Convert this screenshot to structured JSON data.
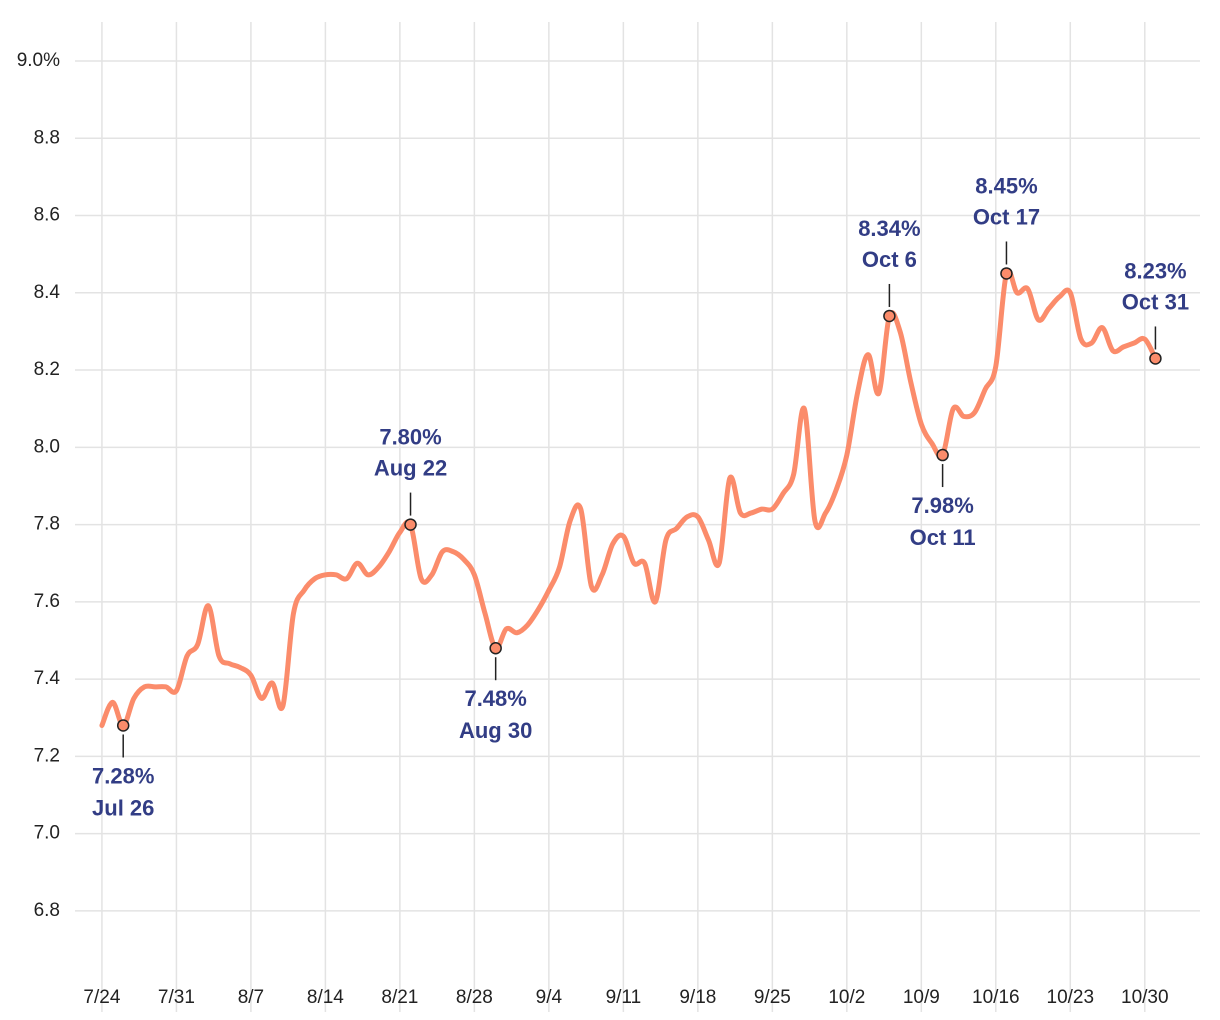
{
  "chart_data": {
    "type": "line",
    "color": "#fb8c6b",
    "annotation_color": "#323d85",
    "grid": true,
    "x": [
      "7/24",
      "7/25",
      "7/26",
      "7/27",
      "7/28",
      "7/29",
      "7/30",
      "7/31",
      "8/1",
      "8/2",
      "8/3",
      "8/4",
      "8/5",
      "8/6",
      "8/7",
      "8/8",
      "8/9",
      "8/10",
      "8/11",
      "8/12",
      "8/13",
      "8/14",
      "8/15",
      "8/16",
      "8/17",
      "8/18",
      "8/19",
      "8/20",
      "8/21",
      "8/22",
      "8/23",
      "8/24",
      "8/25",
      "8/26",
      "8/27",
      "8/28",
      "8/29",
      "8/30",
      "8/31",
      "9/1",
      "9/2",
      "9/3",
      "9/4",
      "9/5",
      "9/6",
      "9/7",
      "9/8",
      "9/9",
      "9/10",
      "9/11",
      "9/12",
      "9/13",
      "9/14",
      "9/15",
      "9/16",
      "9/17",
      "9/18",
      "9/19",
      "9/20",
      "9/21",
      "9/22",
      "9/23",
      "9/24",
      "9/25",
      "9/26",
      "9/27",
      "9/28",
      "9/29",
      "9/30",
      "10/1",
      "10/2",
      "10/3",
      "10/4",
      "10/5",
      "10/6",
      "10/7",
      "10/8",
      "10/9",
      "10/10",
      "10/11",
      "10/12",
      "10/13",
      "10/14",
      "10/15",
      "10/16",
      "10/17",
      "10/18",
      "10/19",
      "10/20",
      "10/21",
      "10/22",
      "10/23",
      "10/24",
      "10/25",
      "10/26",
      "10/27",
      "10/28",
      "10/29",
      "10/30",
      "10/31"
    ],
    "values": [
      7.28,
      7.34,
      7.28,
      7.35,
      7.38,
      7.38,
      7.38,
      7.37,
      7.46,
      7.49,
      7.59,
      7.46,
      7.44,
      7.43,
      7.41,
      7.35,
      7.39,
      7.33,
      7.57,
      7.63,
      7.66,
      7.67,
      7.67,
      7.66,
      7.7,
      7.67,
      7.69,
      7.73,
      7.78,
      7.8,
      7.66,
      7.67,
      7.73,
      7.73,
      7.71,
      7.67,
      7.57,
      7.48,
      7.53,
      7.52,
      7.54,
      7.58,
      7.63,
      7.69,
      7.81,
      7.84,
      7.64,
      7.67,
      7.75,
      7.77,
      7.7,
      7.7,
      7.6,
      7.76,
      7.79,
      7.82,
      7.82,
      7.76,
      7.7,
      7.92,
      7.83,
      7.83,
      7.84,
      7.84,
      7.88,
      7.93,
      8.1,
      7.81,
      7.83,
      7.89,
      7.98,
      8.14,
      8.24,
      8.14,
      8.34,
      8.3,
      8.17,
      8.06,
      8.01,
      7.98,
      8.1,
      8.08,
      8.09,
      8.15,
      8.21,
      8.45,
      8.4,
      8.41,
      8.33,
      8.36,
      8.39,
      8.4,
      8.28,
      8.27,
      8.31,
      8.25,
      8.26,
      8.27,
      8.28,
      8.23
    ],
    "xlim": [
      "7/21",
      "11/4"
    ],
    "xticks": [
      "7/24",
      "7/31",
      "8/7",
      "8/14",
      "8/21",
      "8/28",
      "9/4",
      "9/11",
      "9/18",
      "9/25",
      "10/2",
      "10/9",
      "10/16",
      "10/23",
      "10/30"
    ],
    "ylim": [
      6.66,
      9.0
    ],
    "yticks": [
      {
        "value": 6.8,
        "label": "6.8"
      },
      {
        "value": 7.0,
        "label": "7.0"
      },
      {
        "value": 7.2,
        "label": "7.2"
      },
      {
        "value": 7.4,
        "label": "7.4"
      },
      {
        "value": 7.6,
        "label": "7.6"
      },
      {
        "value": 7.8,
        "label": "7.8"
      },
      {
        "value": 8.0,
        "label": "8.0"
      },
      {
        "value": 8.2,
        "label": "8.2"
      },
      {
        "value": 8.4,
        "label": "8.4"
      },
      {
        "value": 8.6,
        "label": "8.6"
      },
      {
        "value": 8.8,
        "label": "8.8"
      },
      {
        "value": 9.0,
        "label": "9.0%"
      }
    ],
    "annotations": [
      {
        "x": "7/26",
        "value": 7.28,
        "label": "7.28%",
        "text": "Jul 26",
        "position": "below"
      },
      {
        "x": "8/22",
        "value": 7.8,
        "label": "7.80%",
        "text": "Aug 22",
        "position": "above"
      },
      {
        "x": "8/30",
        "value": 7.48,
        "label": "7.48%",
        "text": "Aug 30",
        "position": "below"
      },
      {
        "x": "10/6",
        "value": 8.34,
        "label": "8.34%",
        "text": "Oct 6",
        "position": "above"
      },
      {
        "x": "10/11",
        "value": 7.98,
        "label": "7.98%",
        "text": "Oct 11",
        "position": "below"
      },
      {
        "x": "10/17",
        "value": 8.45,
        "label": "8.45%",
        "text": "Oct 17",
        "position": "above"
      },
      {
        "x": "10/31",
        "value": 8.23,
        "label": "8.23%",
        "text": "Oct 31",
        "position": "above"
      }
    ]
  }
}
